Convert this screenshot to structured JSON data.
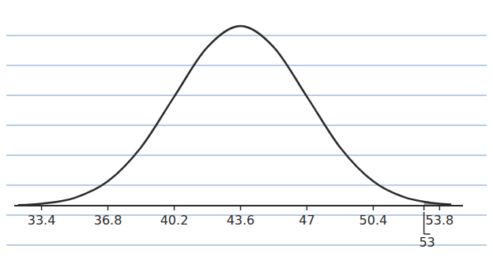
{
  "chart_data": {
    "type": "line",
    "x": [
      32.2,
      33.4,
      35.1,
      36.8,
      38.5,
      40.2,
      41.9,
      43.6,
      45.3,
      47,
      48.7,
      50.4,
      52.1,
      53,
      53.8,
      54.4
    ],
    "series": [
      {
        "type": "line",
        "color": "#2b2b2b",
        "values": [
          0.0004,
          0.0013,
          0.0051,
          0.0159,
          0.0381,
          0.0712,
          0.1035,
          0.1173,
          0.1035,
          0.0712,
          0.0381,
          0.0159,
          0.0051,
          0.0026,
          0.0013,
          0.0008
        ]
      },
      {
        "type": "area",
        "color": "#8a8a8a",
        "values": [
          null,
          null,
          null,
          null,
          null,
          null,
          null,
          null,
          null,
          null,
          null,
          null,
          null,
          0.0026,
          0.0013,
          0.0008
        ]
      }
    ],
    "xlim": [
      32,
      55
    ],
    "xticks": [
      33.4,
      36.8,
      40.2,
      43.6,
      47,
      50.4,
      53.8
    ],
    "ylim": [
      0,
      0.125
    ],
    "tick_labels": "x",
    "annotations": [
      {
        "x": 53,
        "label": "53"
      }
    ]
  }
}
